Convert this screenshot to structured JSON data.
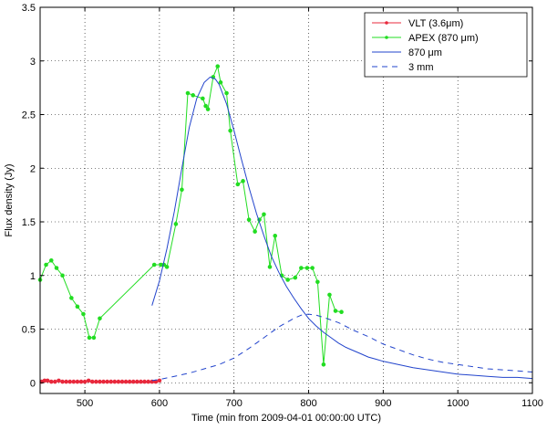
{
  "chart_data": {
    "type": "line",
    "title": "",
    "xlabel": "Time (min from 2009-04-01 00:00:00 UTC)",
    "ylabel": "Flux density (Jy)",
    "xlim": [
      440,
      1100
    ],
    "ylim": [
      -0.1,
      3.5
    ],
    "xticks": [
      500,
      600,
      700,
      800,
      900,
      1000,
      1100
    ],
    "yticks": [
      0,
      0.5,
      1,
      1.5,
      2,
      2.5,
      3,
      3.5
    ],
    "xtick_labels": [
      "500",
      "600",
      "700",
      "800",
      "900",
      "1000",
      "1100"
    ],
    "ytick_labels": [
      "0",
      "0.5",
      "1",
      "1.5",
      "2",
      "2.5",
      "3",
      "3.5"
    ],
    "grid": true,
    "legend_position": "top-right",
    "series": [
      {
        "name": "VLT (3.6μm)",
        "style": "line-dot",
        "color": "#e8283c",
        "x": [
          442,
          446,
          450,
          455,
          460,
          465,
          470,
          475,
          480,
          485,
          490,
          495,
          500,
          505,
          510,
          515,
          520,
          525,
          530,
          535,
          540,
          545,
          550,
          555,
          560,
          565,
          570,
          575,
          580,
          585,
          590,
          595,
          600
        ],
        "y": [
          0.01,
          0.02,
          0.02,
          0.01,
          0.01,
          0.02,
          0.01,
          0.01,
          0.01,
          0.01,
          0.01,
          0.01,
          0.01,
          0.02,
          0.01,
          0.01,
          0.01,
          0.01,
          0.01,
          0.01,
          0.01,
          0.01,
          0.01,
          0.01,
          0.01,
          0.01,
          0.01,
          0.01,
          0.01,
          0.01,
          0.01,
          0.01,
          0.02
        ]
      },
      {
        "name": "APEX (870 μm)",
        "style": "line-dot",
        "color": "#22dd22",
        "x": [
          440,
          448,
          455,
          462,
          470,
          482,
          490,
          498,
          506,
          512,
          520,
          593,
          602,
          606,
          610,
          622,
          630,
          638,
          645,
          658,
          662,
          665,
          672,
          678,
          682,
          690,
          695,
          705,
          712,
          720,
          728,
          734,
          740,
          748,
          755,
          764,
          772,
          782,
          790,
          798,
          805,
          812,
          820,
          828,
          836,
          844
        ],
        "y": [
          0.96,
          1.1,
          1.14,
          1.07,
          1.0,
          0.79,
          0.71,
          0.64,
          0.42,
          0.42,
          0.6,
          1.1,
          1.1,
          1.1,
          1.08,
          1.48,
          1.8,
          2.7,
          2.68,
          2.65,
          2.58,
          2.55,
          2.85,
          2.95,
          2.8,
          2.7,
          2.35,
          1.85,
          1.88,
          1.52,
          1.41,
          1.52,
          1.57,
          1.08,
          1.37,
          1.0,
          0.96,
          0.98,
          1.07,
          1.07,
          1.07,
          0.94,
          0.17,
          0.82,
          0.67,
          0.66
        ]
      },
      {
        "name": "870 μm",
        "style": "solid",
        "color": "#2244cc",
        "x": [
          590,
          600,
          610,
          620,
          630,
          640,
          650,
          660,
          668,
          675,
          680,
          690,
          700,
          710,
          720,
          730,
          740,
          750,
          760,
          770,
          780,
          790,
          800,
          810,
          820,
          830,
          840,
          850,
          860,
          870,
          880,
          890,
          900,
          920,
          940,
          960,
          980,
          1000,
          1020,
          1040,
          1060,
          1080,
          1100
        ],
        "y": [
          0.72,
          0.95,
          1.25,
          1.6,
          2.0,
          2.38,
          2.65,
          2.8,
          2.85,
          2.83,
          2.78,
          2.6,
          2.35,
          2.08,
          1.82,
          1.58,
          1.37,
          1.18,
          1.03,
          0.9,
          0.79,
          0.69,
          0.6,
          0.53,
          0.47,
          0.42,
          0.37,
          0.33,
          0.3,
          0.27,
          0.24,
          0.22,
          0.2,
          0.17,
          0.14,
          0.12,
          0.1,
          0.08,
          0.07,
          0.06,
          0.05,
          0.05,
          0.04
        ]
      },
      {
        "name": "3 mm",
        "style": "dashed",
        "color": "#2244cc",
        "x": [
          590,
          600,
          620,
          640,
          660,
          680,
          700,
          720,
          740,
          760,
          780,
          790,
          800,
          810,
          820,
          840,
          860,
          880,
          900,
          920,
          940,
          960,
          980,
          1000,
          1020,
          1040,
          1060,
          1080,
          1100
        ],
        "y": [
          0.02,
          0.03,
          0.06,
          0.09,
          0.13,
          0.17,
          0.23,
          0.32,
          0.42,
          0.52,
          0.6,
          0.63,
          0.64,
          0.63,
          0.61,
          0.56,
          0.49,
          0.43,
          0.36,
          0.31,
          0.26,
          0.22,
          0.19,
          0.17,
          0.15,
          0.13,
          0.12,
          0.11,
          0.1
        ]
      }
    ]
  }
}
